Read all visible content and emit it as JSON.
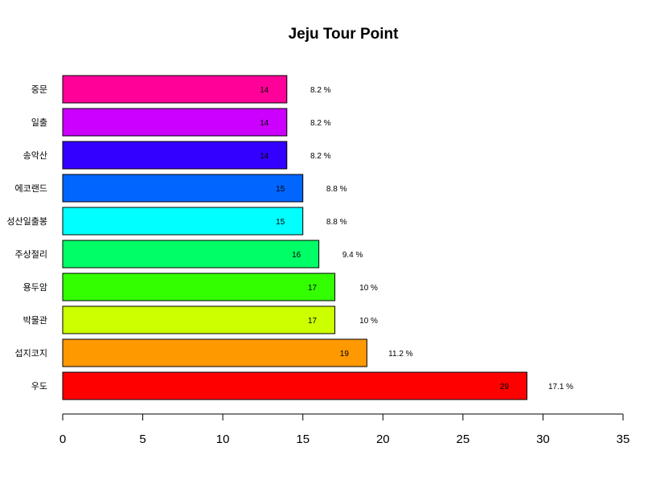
{
  "chart_data": {
    "type": "bar",
    "orientation": "horizontal",
    "title": "Jeju Tour Point",
    "xlabel": "",
    "ylabel": "",
    "xlim": [
      0,
      35
    ],
    "x_ticks": [
      0,
      5,
      10,
      15,
      20,
      25,
      30,
      35
    ],
    "categories": [
      "우도",
      "섭지코지",
      "박물관",
      "용두암",
      "주상절리",
      "성산일출봉",
      "에코랜드",
      "송악산",
      "일출",
      "중문"
    ],
    "values": [
      29,
      19,
      17,
      17,
      16,
      15,
      15,
      14,
      14,
      14
    ],
    "percent_labels": [
      "17.1 %",
      "11.2 %",
      "10 %",
      "10 %",
      "9.4 %",
      "8.8 %",
      "8.8 %",
      "8.2 %",
      "8.2 %",
      "8.2 %"
    ],
    "colors": [
      "#FF0000",
      "#FF9900",
      "#CCFF00",
      "#33FF00",
      "#00FF66",
      "#00FFFF",
      "#0066FF",
      "#3300FF",
      "#CC00FF",
      "#FF0099"
    ],
    "grid": false,
    "legend": "none"
  }
}
